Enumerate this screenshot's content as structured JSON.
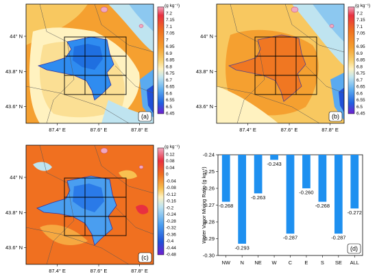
{
  "panels": [
    {
      "label": "(a)",
      "colorbar_unit": "(g kg⁻¹)",
      "colorbar_ticks": [
        "7.2",
        "7.15",
        "7.1",
        "7.05",
        "7",
        "6.95",
        "6.9",
        "6.85",
        "6.8",
        "6.75",
        "6.7",
        "6.65",
        "6.6",
        "6.55",
        "6.5",
        "6.45"
      ],
      "y_ticks": [
        "44° N",
        "43.8° N",
        "43.6° N"
      ],
      "x_ticks": [
        "87.4° E",
        "87.6° E",
        "87.8° E"
      ]
    },
    {
      "label": "(b)",
      "colorbar_unit": "(g kg⁻¹)",
      "colorbar_ticks": [
        "7.2",
        "7.15",
        "7.1",
        "7.05",
        "7",
        "6.95",
        "6.9",
        "6.85",
        "6.8",
        "6.75",
        "6.7",
        "6.65",
        "6.6",
        "6.55",
        "6.5",
        "6.45"
      ],
      "y_ticks": [
        "44° N",
        "43.8° N",
        "43.6° N"
      ],
      "x_ticks": [
        "87.4° E",
        "87.6° E",
        "87.8° E"
      ]
    },
    {
      "label": "(c)",
      "colorbar_unit": "(g kg⁻¹)",
      "colorbar_ticks": [
        "0.12",
        "0.08",
        "0.04",
        "0",
        "-0.04",
        "-0.08",
        "-0.12",
        "-0.16",
        "-0.2",
        "-0.24",
        "-0.28",
        "-0.32",
        "-0.36",
        "-0.4",
        "-0.44",
        "-0.48"
      ],
      "y_ticks": [
        "44° N",
        "43.8° N",
        "43.6° N"
      ],
      "x_ticks": [
        "87.4° E",
        "87.6° E",
        "87.8° E"
      ]
    }
  ],
  "chart_data": {
    "type": "bar",
    "panel_label": "(d)",
    "categories": [
      "NW",
      "N",
      "NE",
      "W",
      "C",
      "E",
      "S",
      "SE",
      "ALL"
    ],
    "values": [
      -0.268,
      -0.293,
      -0.263,
      -0.243,
      -0.287,
      -0.26,
      -0.268,
      -0.287,
      -0.272
    ],
    "value_labels": [
      "-0.268",
      "-0.293",
      "-0.263",
      "-0.243",
      "-0.287",
      "-0.260",
      "-0.268",
      "-0.287",
      "-0.272"
    ],
    "ylabel": "Water Vapor Mixing Ratio (g kg⁻¹)",
    "ylim": [
      -0.3,
      -0.24
    ],
    "yticks": [
      -0.24,
      -0.25,
      -0.26,
      -0.27,
      -0.28,
      -0.29,
      -0.3
    ],
    "ytick_labels": [
      "-0.24",
      "-0.25",
      "-0.26",
      "-0.27",
      "-0.28",
      "-0.29",
      "-0.30"
    ],
    "bar_color": "#1e90f0"
  }
}
